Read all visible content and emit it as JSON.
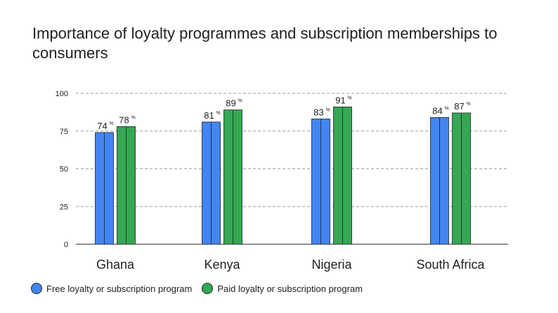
{
  "chart_data": {
    "type": "bar",
    "title": "Importance of loyalty programmes and subscription memberships to consumers",
    "categories": [
      "Ghana",
      "Kenya",
      "Nigeria",
      "South Africa"
    ],
    "series": [
      {
        "name": "Free loyalty or subscription program",
        "values": [
          74,
          81,
          83,
          84
        ],
        "labels": [
          "74",
          "81",
          "83",
          "84"
        ],
        "color": "#4285F4"
      },
      {
        "name": "Paid loyalty or subscription program",
        "values": [
          78,
          89,
          91,
          87
        ],
        "labels": [
          "78",
          "89",
          "91",
          "87"
        ],
        "color": "#34A853"
      }
    ],
    "label_suffix": "%",
    "yticks": [
      "0",
      "25",
      "50",
      "75",
      "100"
    ],
    "ylim": [
      0,
      100
    ],
    "grid": true,
    "legend": "bottom-left"
  },
  "colors": {
    "grid": "#9e9e9e",
    "axis": "#202124",
    "bar_outline": "#202124"
  }
}
